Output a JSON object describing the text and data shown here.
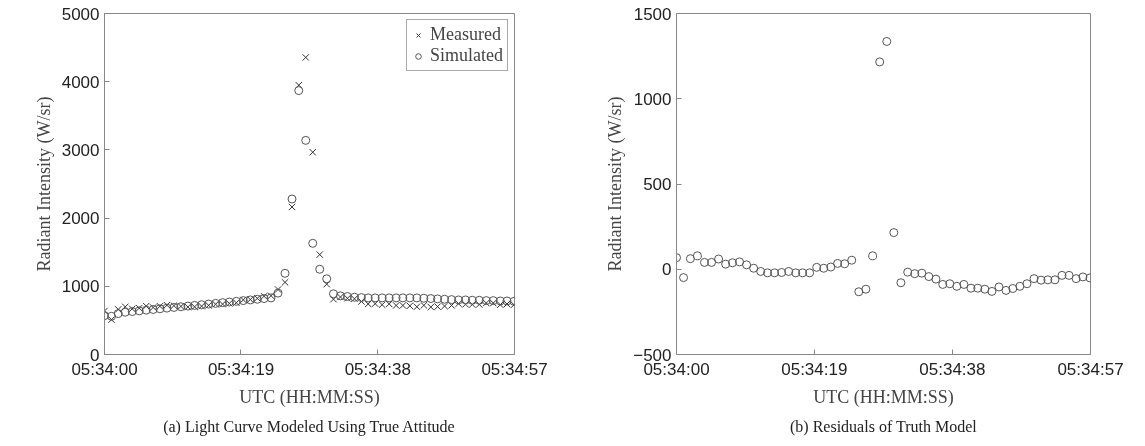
{
  "chart_data": [
    {
      "type": "scatter",
      "xlabel": "UTC (HH:MM:SS)",
      "ylabel": "Radiant Intensity (W/sr)",
      "x": [
        5.56667,
        5.56694,
        5.5672,
        5.56747,
        5.56774,
        5.56801,
        5.56828,
        5.56855,
        5.56881,
        5.56908,
        5.56935,
        5.56962,
        5.56989,
        5.57015,
        5.57042,
        5.57069,
        5.57096,
        5.57123,
        5.57149,
        5.57176,
        5.57203,
        5.5723,
        5.57257,
        5.57283,
        5.5731,
        5.57337,
        5.57364,
        5.57391,
        5.57417,
        5.57444,
        5.57471,
        5.57498,
        5.57525,
        5.57551,
        5.57578,
        5.57605,
        5.57632,
        5.57659,
        5.57685,
        5.57712,
        5.57739,
        5.57766,
        5.57793,
        5.57819,
        5.57846,
        5.57873,
        5.579,
        5.57927,
        5.57953,
        5.5798,
        5.58007,
        5.58034,
        5.58061,
        5.58087,
        5.58114,
        5.58141,
        5.58168,
        5.58195,
        5.58221,
        5.58248
      ],
      "series": [
        {
          "name": "Measured",
          "color": "#333333",
          "marker": "cross",
          "values": [
            638,
            511,
            662,
            699,
            670,
            680,
            710,
            690,
            708,
            723,
            716,
            706,
            697,
            699,
            709,
            721,
            737,
            739,
            749,
            759,
            801,
            806,
            823,
            854,
            862,
            953,
            1058,
            2163,
            3949,
            4356,
            2966,
            1465,
            1031,
            811,
            843,
            824,
            817,
            777,
            741,
            745,
            730,
            741,
            719,
            719,
            713,
            700,
            721,
            696,
            702,
            710,
            720,
            745,
            736,
            733,
            733,
            754,
            754,
            730,
            740,
            729
          ]
        },
        {
          "name": "Simulated",
          "color": "#555555",
          "marker": "circle",
          "values": [
            570,
            560,
            600,
            620,
            630,
            640,
            650,
            660,
            670,
            680,
            690,
            700,
            710,
            720,
            730,
            740,
            750,
            760,
            770,
            780,
            790,
            800,
            810,
            820,
            830,
            900,
            1190,
            2280,
            3870,
            3140,
            1630,
            1250,
            1110,
            890,
            860,
            850,
            840,
            835,
            830,
            830,
            830,
            830,
            830,
            830,
            830,
            830,
            825,
            820,
            815,
            810,
            805,
            800,
            800,
            795,
            795,
            790,
            790,
            785,
            785,
            780
          ]
        }
      ],
      "xlim": [
        5.56667,
        5.5825
      ],
      "xticks": [
        {
          "value": 5.56667,
          "label": "05:34:00"
        },
        {
          "value": 5.57194,
          "label": "05:34:19"
        },
        {
          "value": 5.57722,
          "label": "05:34:38"
        },
        {
          "value": 5.5825,
          "label": "05:34:57"
        }
      ],
      "ylim": [
        0,
        5000
      ],
      "yticks": [
        0,
        1000,
        2000,
        3000,
        4000,
        5000
      ],
      "grid": false,
      "legend": "top right",
      "annotations": [
        "(a) Light Curve Modeled Using True Attitude"
      ]
    },
    {
      "type": "scatter",
      "xlabel": "UTC (HH:MM:SS)",
      "ylabel": "Radiant Intensity (W/sr)",
      "x": [
        5.56667,
        5.56694,
        5.5672,
        5.56747,
        5.56774,
        5.56801,
        5.56828,
        5.56855,
        5.56881,
        5.56908,
        5.56935,
        5.56962,
        5.56989,
        5.57015,
        5.57042,
        5.57069,
        5.57096,
        5.57123,
        5.57149,
        5.57176,
        5.57203,
        5.5723,
        5.57257,
        5.57283,
        5.5731,
        5.57337,
        5.57364,
        5.57391,
        5.57417,
        5.57444,
        5.57471,
        5.57498,
        5.57525,
        5.57551,
        5.57578,
        5.57605,
        5.57632,
        5.57659,
        5.57685,
        5.57712,
        5.57739,
        5.57766,
        5.57793,
        5.57819,
        5.57846,
        5.57873,
        5.579,
        5.57927,
        5.57953,
        5.5798,
        5.58007,
        5.58034,
        5.58061,
        5.58087,
        5.58114,
        5.58141,
        5.58168,
        5.58195,
        5.58221,
        5.58248
      ],
      "series": [
        {
          "color": "#555555",
          "marker": "circle",
          "values": [
            68,
            -49,
            62,
            79,
            40,
            40,
            60,
            30,
            38,
            43,
            26,
            6,
            -13,
            -21,
            -21,
            -19,
            -13,
            -21,
            -21,
            -21,
            11,
            6,
            13,
            34,
            32,
            53,
            -132,
            -117,
            79,
            1216,
            1336,
            215,
            -79,
            -17,
            -26,
            -23,
            -43,
            -58,
            -89,
            -85,
            -100,
            -89,
            -111,
            -111,
            -117,
            -130,
            -104,
            -124,
            -113,
            -100,
            -85,
            -55,
            -64,
            -62,
            -62,
            -36,
            -36,
            -55,
            -45,
            -51
          ]
        }
      ],
      "xlim": [
        5.56667,
        5.5825
      ],
      "xticks": [
        {
          "value": 5.56667,
          "label": "05:34:00"
        },
        {
          "value": 5.57194,
          "label": "05:34:19"
        },
        {
          "value": 5.57722,
          "label": "05:34:38"
        },
        {
          "value": 5.5825,
          "label": "05:34:57"
        }
      ],
      "ylim": [
        -500,
        1500
      ],
      "yticks": [
        -500,
        0,
        500,
        1000,
        1500
      ],
      "grid": false,
      "annotations": [
        "(b) Residuals of Truth Model"
      ]
    }
  ]
}
